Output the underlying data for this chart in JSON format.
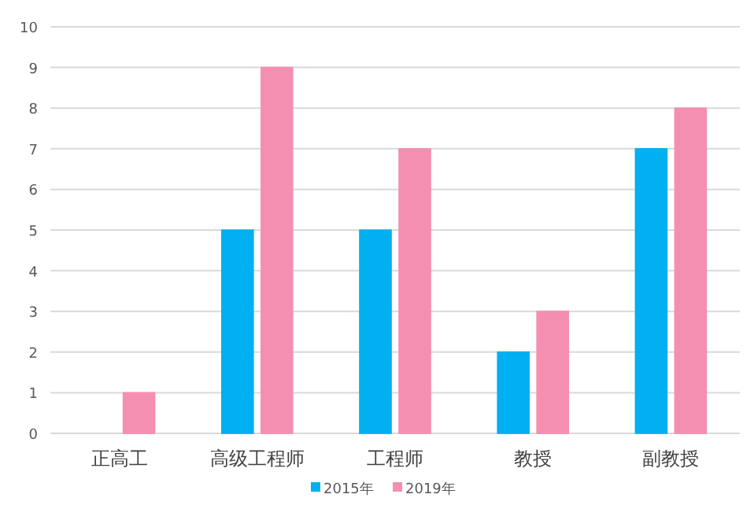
{
  "chart_data": {
    "type": "bar",
    "categories": [
      "正高工",
      "高级工程师",
      "工程师",
      "教授",
      "副教授"
    ],
    "series": [
      {
        "name": "2015年",
        "color": "#00b0f0",
        "values": [
          0,
          5,
          5,
          2,
          7
        ]
      },
      {
        "name": "2019年",
        "color": "#f48fb1",
        "values": [
          1,
          9,
          7,
          3,
          8
        ]
      }
    ],
    "ylim": [
      0,
      10
    ],
    "yticks": [
      0,
      1,
      2,
      3,
      4,
      5,
      6,
      7,
      8,
      9,
      10
    ],
    "grid": "y",
    "legend": "bottom"
  }
}
